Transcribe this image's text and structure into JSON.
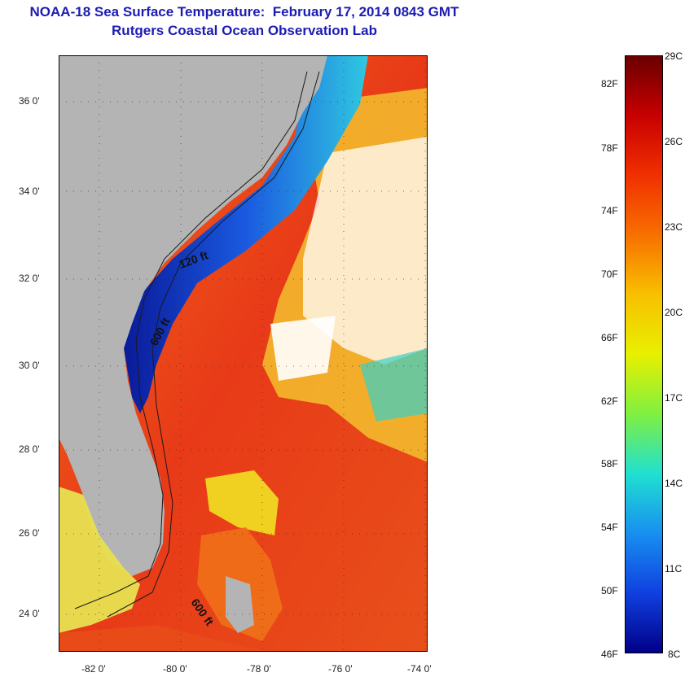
{
  "title": "NOAA-18 Sea Surface Temperature:  February 17, 2014 0843 GMT",
  "subtitle": "Rutgers Coastal Ocean Observation Lab",
  "map": {
    "lat_labels": [
      "36 0'",
      "34 0'",
      "32 0'",
      "30 0'",
      "28 0'",
      "26 0'",
      "24 0'"
    ],
    "lon_labels": [
      "-82 0'",
      "-80 0'",
      "-78 0'",
      "-76 0'",
      "-74 0'"
    ],
    "contour_labels": [
      "120 ft",
      "600 ft",
      "600 ft"
    ],
    "colors": {
      "land": "#b4b4b4",
      "gulf_stream": "#e8451a",
      "cold_shelf": "#1a3cc8",
      "clouds": "#ffffff"
    }
  },
  "colorbar": {
    "fahrenheit_labels": [
      "82F",
      "78F",
      "74F",
      "70F",
      "66F",
      "62F",
      "58F",
      "54F",
      "50F",
      "46F"
    ],
    "celsius_labels": [
      "29C",
      "26C",
      "23C",
      "20C",
      "17C",
      "14C",
      "11C",
      "8C"
    ],
    "range_c": [
      8,
      29
    ],
    "gradient_stops": [
      "#6a0000",
      "#c80000",
      "#f03000",
      "#f87000",
      "#f8c000",
      "#e8f000",
      "#80f040",
      "#20e0d0",
      "#1890f0",
      "#1040e0",
      "#000088"
    ]
  }
}
